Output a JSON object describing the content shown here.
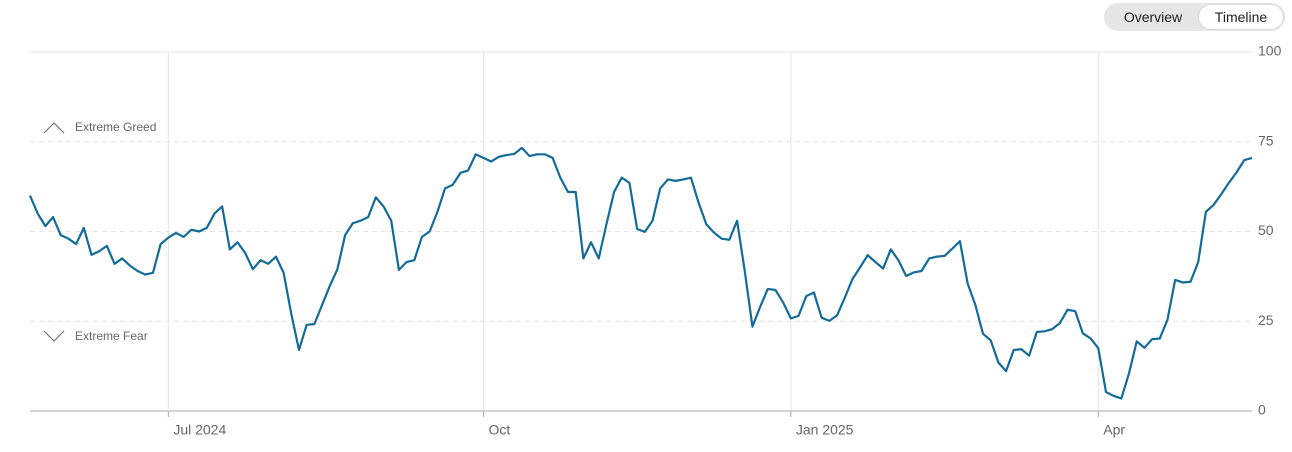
{
  "buttons": [
    "Overview",
    "Timeline"
  ],
  "chart_data": {
    "type": "line",
    "annotations": [
      "Extreme Greed",
      "Extreme Fear"
    ],
    "categories": [
      null,
      null,
      null,
      null,
      null,
      null,
      null,
      null,
      null,
      null,
      null,
      null,
      null,
      null,
      null,
      null,
      null,
      null,
      "Jul 2024",
      null,
      null,
      null,
      null,
      null,
      null,
      null,
      null,
      null,
      null,
      null,
      null,
      null,
      null,
      null,
      null,
      null,
      null,
      null,
      null,
      null,
      null,
      null,
      null,
      null,
      null,
      null,
      null,
      null,
      null,
      null,
      null,
      null,
      null,
      null,
      null,
      null,
      null,
      null,
      null,
      "Oct",
      null,
      null,
      null,
      null,
      null,
      null,
      null,
      null,
      null,
      null,
      null,
      null,
      null,
      null,
      null,
      null,
      null,
      null,
      null,
      null,
      null,
      null,
      null,
      null,
      null,
      null,
      null,
      null,
      null,
      null,
      null,
      null,
      null,
      null,
      null,
      null,
      null,
      null,
      null,
      "Jan 2025",
      null,
      null,
      null,
      null,
      null,
      null,
      null,
      null,
      null,
      null,
      null,
      null,
      null,
      null,
      null,
      null,
      null,
      null,
      null,
      null,
      null,
      null,
      null,
      null,
      null,
      null,
      null,
      null,
      null,
      null,
      null,
      null,
      null,
      null,
      null,
      null,
      null,
      null,
      null,
      "Apr",
      null,
      null,
      null,
      null,
      null,
      null,
      null,
      null,
      null,
      null,
      null,
      null,
      null,
      null,
      null,
      null,
      null,
      null,
      null,
      null
    ],
    "values": [
      60,
      55,
      51.5,
      54,
      49,
      48,
      46.5,
      51,
      43.5,
      44.5,
      46,
      41,
      42.5,
      40.5,
      39,
      38,
      38.5,
      46.5,
      48.3,
      49.6,
      48.5,
      50.5,
      50,
      51,
      55,
      57,
      45,
      47,
      44,
      39.5,
      42,
      41,
      43,
      38.5,
      27,
      17,
      24,
      24.2,
      29.5,
      34.8,
      39.5,
      49,
      52.3,
      53,
      54,
      59.5,
      57,
      53,
      39.3,
      41.5,
      42,
      48.5,
      50,
      55.4,
      62,
      63,
      66.3,
      67,
      71.5,
      70.5,
      69.5,
      70.8,
      71.3,
      71.6,
      73.3,
      71,
      71.5,
      71.5,
      70.5,
      65,
      61,
      61,
      42.5,
      47,
      42.5,
      52,
      61,
      65,
      63.5,
      50.7,
      49.9,
      53,
      62,
      64.5,
      64.1,
      64.5,
      65,
      58,
      52,
      49.7,
      48,
      47.7,
      53,
      39,
      23.5,
      29,
      34,
      33.7,
      30.2,
      25.8,
      26.5,
      32,
      33,
      26,
      25.1,
      26.6,
      31.5,
      36.7,
      40,
      43.4,
      41.5,
      39.7,
      45,
      42,
      37.6,
      38.6,
      39,
      42.5,
      43,
      43.2,
      45.2,
      47.3,
      35.5,
      29.6,
      21.5,
      19.7,
      13.5,
      11.1,
      17,
      17.2,
      15.4,
      22,
      22.2,
      22.8,
      24.5,
      28.2,
      27.8,
      21.6,
      20.2,
      17.5,
      5.3,
      4.2,
      3.5,
      10.5,
      19.4,
      17.6,
      20,
      20.2,
      25.4,
      36.5,
      35.8,
      36,
      41.5,
      55.5,
      57.4,
      60.4,
      63.6,
      66.5,
      69.9,
      70.5
    ],
    "color": "#136b99",
    "ylim": [
      0,
      100
    ],
    "yticks": [
      0,
      25,
      50,
      75,
      100
    ],
    "grid": true
  }
}
